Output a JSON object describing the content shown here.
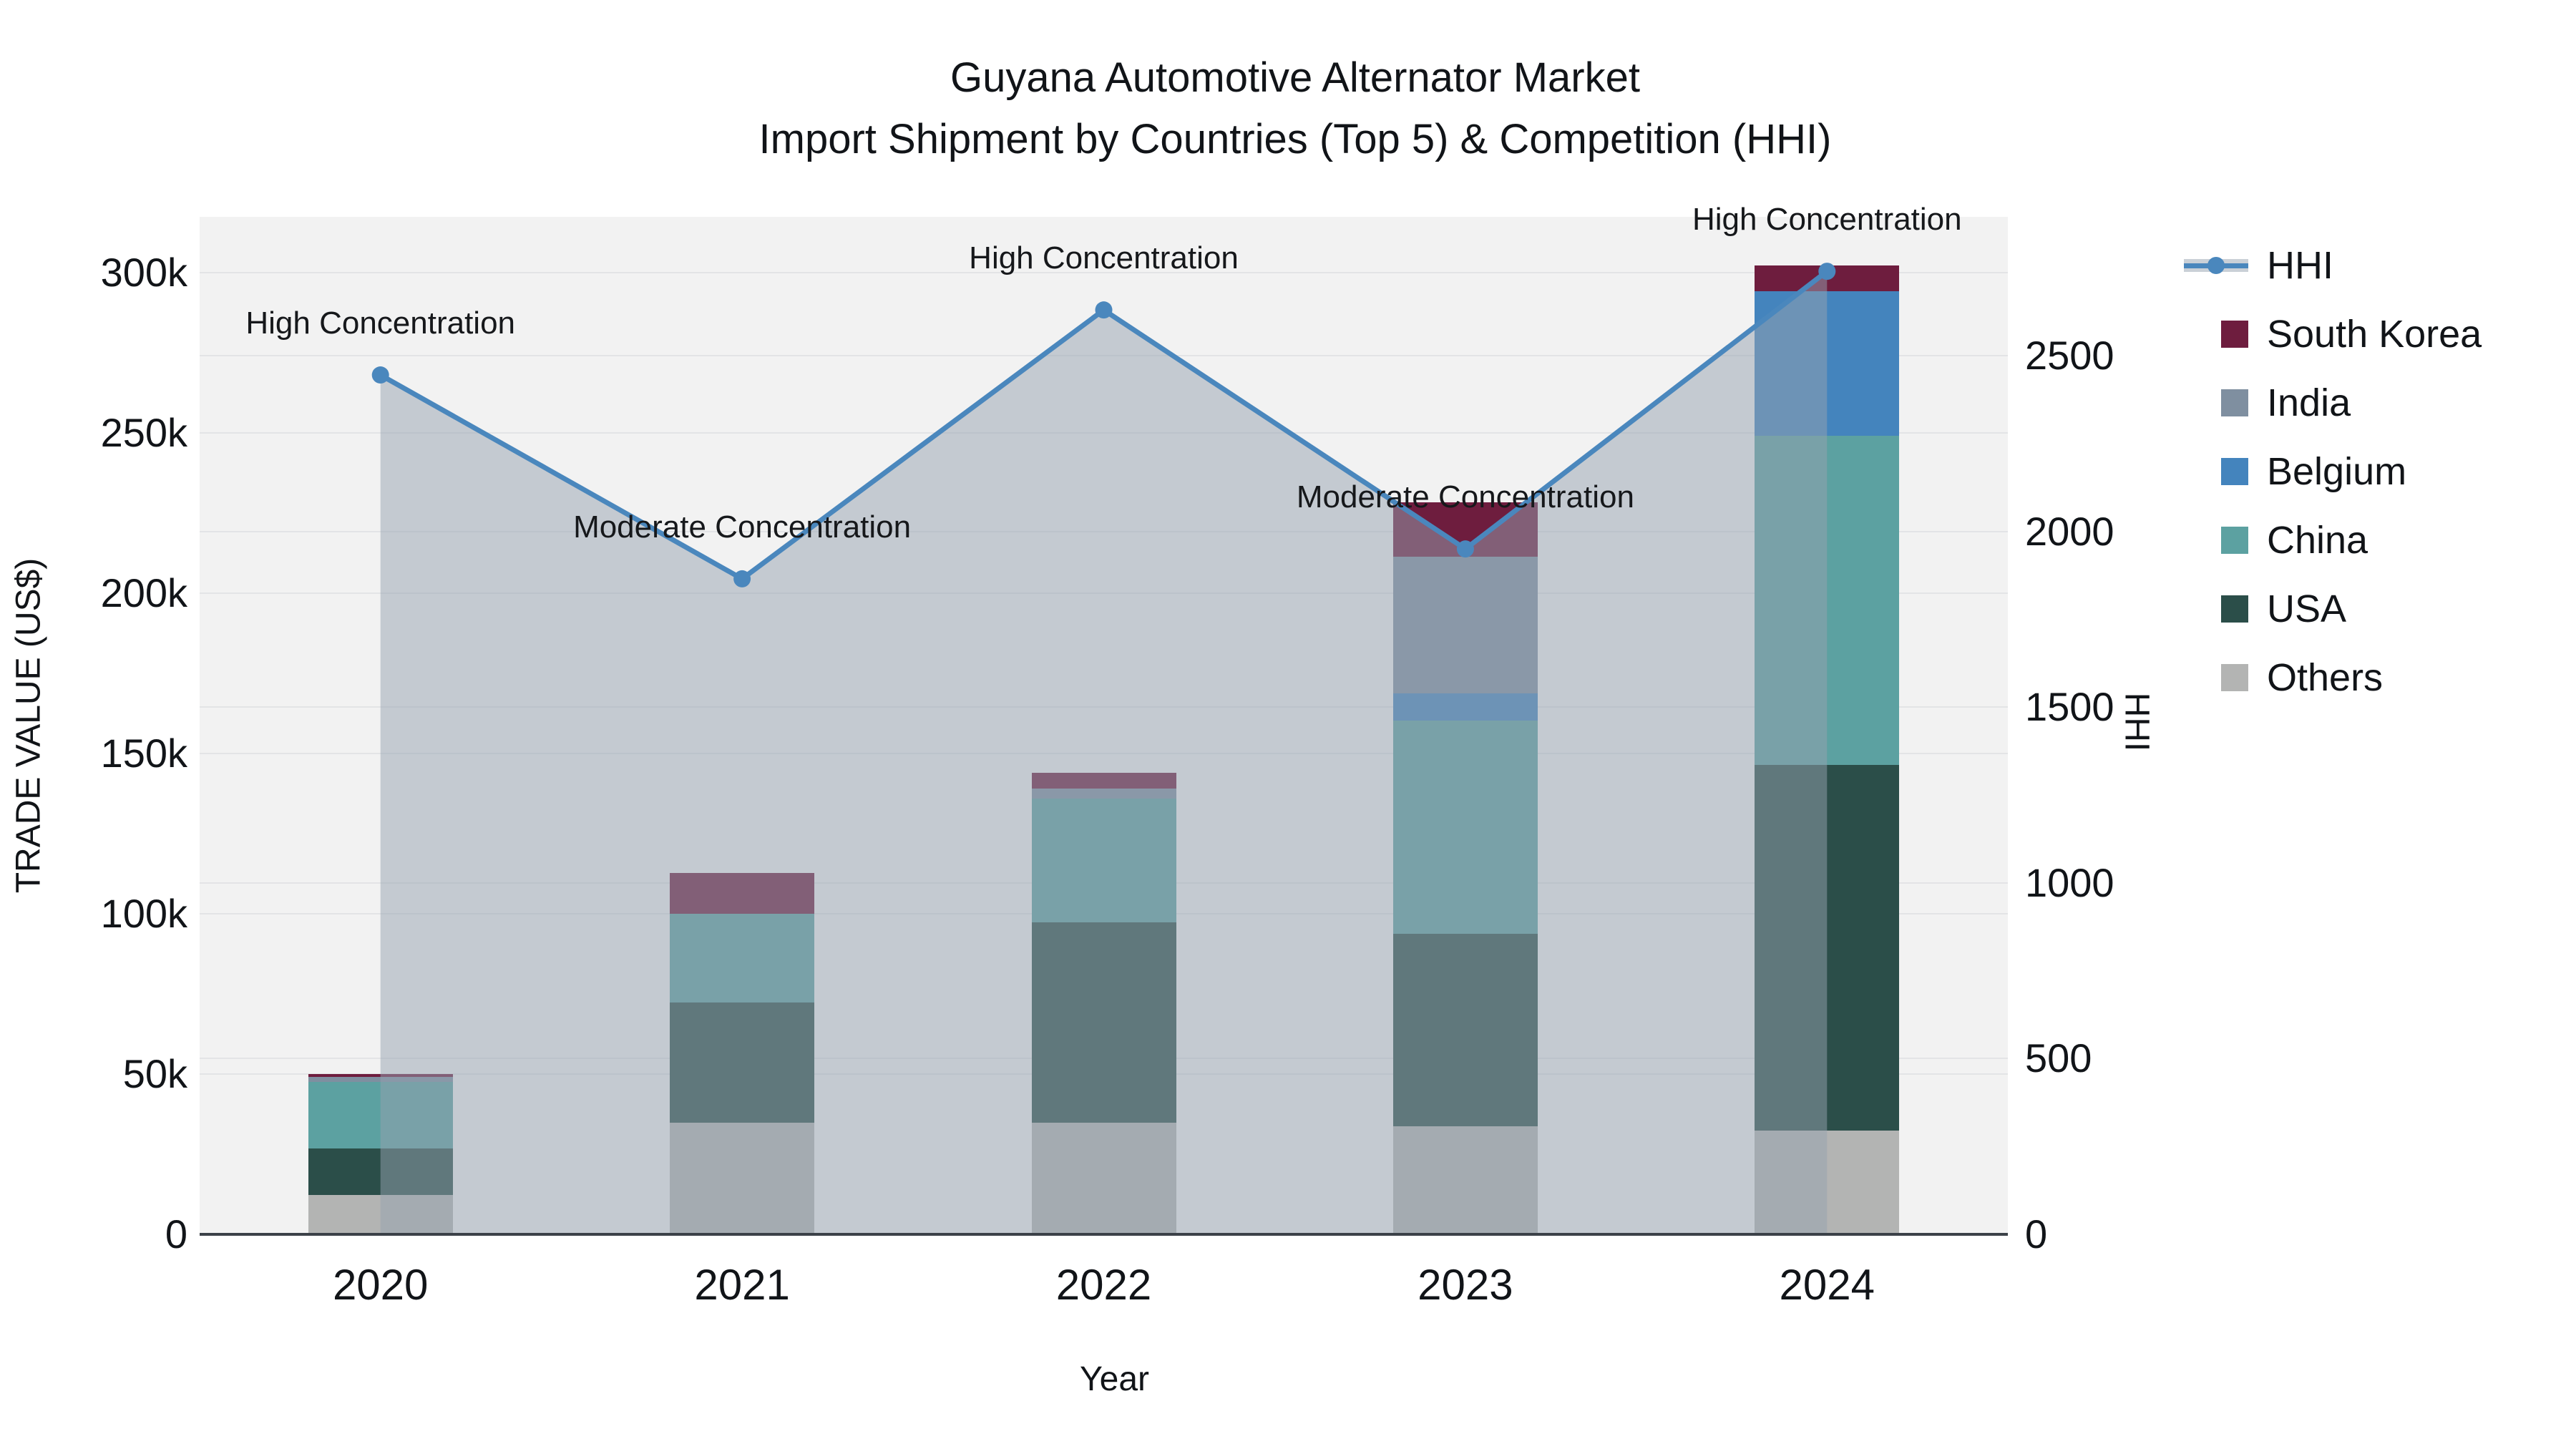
{
  "title": {
    "line1": "Guyana Automotive Alternator Market",
    "line2": "Import Shipment by Countries (Top 5) & Competition (HHI)"
  },
  "chart_data": {
    "type": "combo: stacked-bar + line-with-area",
    "title": "Guyana Automotive Alternator Market",
    "subtitle": "Import Shipment by Countries (Top 5) & Competition (HHI)",
    "xlabel": "Year",
    "ylabel_left": "TRADE VALUE (US$)",
    "ylabel_right": "HHI",
    "categories": [
      "2020",
      "2021",
      "2022",
      "2023",
      "2024"
    ],
    "stack_order_bottom_to_top": [
      "Others",
      "USA",
      "China",
      "Belgium",
      "India",
      "South Korea"
    ],
    "series": [
      {
        "name": "Others",
        "color": "#b3b4b3",
        "values": [
          12300,
          34800,
          34800,
          33600,
          32400
        ]
      },
      {
        "name": "USA",
        "color": "#2b4e49",
        "values": [
          14500,
          37500,
          62600,
          60100,
          114000
        ]
      },
      {
        "name": "China",
        "color": "#5ca1a1",
        "values": [
          20700,
          27700,
          38500,
          66500,
          102600
        ]
      },
      {
        "name": "Belgium",
        "color": "#4484bd",
        "values": [
          0,
          0,
          0,
          8500,
          45100
        ]
      },
      {
        "name": "India",
        "color": "#7f8fa0",
        "values": [
          1600,
          0,
          3200,
          42600,
          0
        ]
      },
      {
        "name": "South Korea",
        "color": "#6e1d3e",
        "values": [
          900,
          12700,
          4800,
          17000,
          8100
        ]
      }
    ],
    "bar_totals": [
      50000,
      112700,
      143900,
      228300,
      302200
    ],
    "line_series": {
      "name": "HHI",
      "color": "#4a87bd",
      "area_fill": "rgba(150,161,176,0.5)",
      "values": [
        2445,
        1865,
        2630,
        1950,
        2740
      ]
    },
    "annotations": [
      {
        "x": "2020",
        "text": "High Concentration"
      },
      {
        "x": "2021",
        "text": "Moderate Concentration"
      },
      {
        "x": "2022",
        "text": "High Concentration"
      },
      {
        "x": "2023",
        "text": "Moderate Concentration"
      },
      {
        "x": "2024",
        "text": "High Concentration"
      }
    ],
    "left_ticks": [
      {
        "label": "0",
        "value": 0
      },
      {
        "label": "50k",
        "value": 50000
      },
      {
        "label": "100k",
        "value": 100000
      },
      {
        "label": "150k",
        "value": 150000
      },
      {
        "label": "200k",
        "value": 200000
      },
      {
        "label": "250k",
        "value": 250000
      },
      {
        "label": "300k",
        "value": 300000
      }
    ],
    "right_ticks": [
      {
        "label": "0",
        "value": 0
      },
      {
        "label": "500",
        "value": 500
      },
      {
        "label": "1000",
        "value": 1000
      },
      {
        "label": "1500",
        "value": 1500
      },
      {
        "label": "2000",
        "value": 2000
      },
      {
        "label": "2500",
        "value": 2500
      }
    ],
    "ylim_left": [
      0,
      317400
    ],
    "ylim_right": [
      0,
      2895
    ],
    "grid": true,
    "legend_position": "right",
    "legend": [
      "HHI",
      "South Korea",
      "India",
      "Belgium",
      "China",
      "USA",
      "Others"
    ],
    "plot_background": "#f2f2f2",
    "gridline_color": "#e3e4e6",
    "axis_line_color": "#3b4148"
  }
}
